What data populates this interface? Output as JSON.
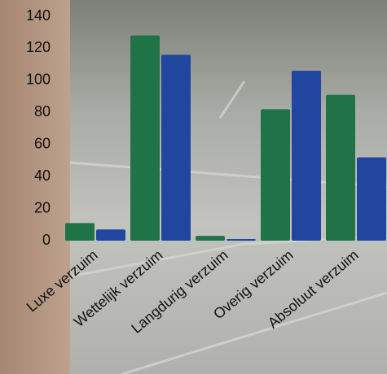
{
  "chart_data": {
    "type": "bar",
    "categories": [
      "Luxe verzuim",
      "Wettelijk verzuim",
      "Langdurig verzuim",
      "Overig verzuim",
      "Absoluut verzuim"
    ],
    "series": [
      {
        "color": "#1f7346",
        "values": [
          11,
          128,
          3,
          82,
          91
        ]
      },
      {
        "color": "#2046a0",
        "values": [
          7,
          116,
          1,
          106,
          52
        ]
      }
    ],
    "ylim": [
      0,
      140
    ],
    "yticks": [
      0,
      20,
      40,
      60,
      80,
      100,
      120,
      140
    ],
    "grid": false
  }
}
